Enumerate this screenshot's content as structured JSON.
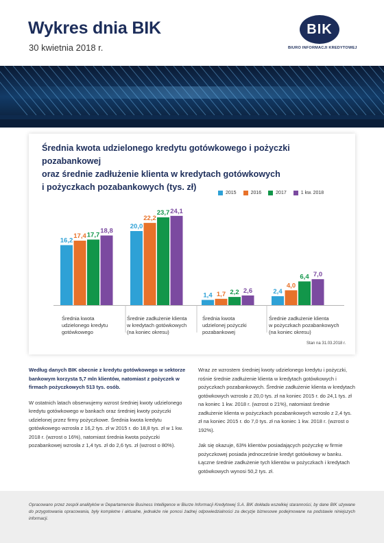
{
  "header": {
    "title": "Wykres dnia BIK",
    "date": "30 kwietnia 2018 r.",
    "logo_text": "BIK",
    "logo_subtitle": "BIURO INFORMACJI KREDYTOWEJ"
  },
  "chart": {
    "title_lines": [
      "Średnia kwota udzielonego kredytu gotówkowego i pożyczki pozabankowej",
      "oraz średnie zadłużenie klienta w kredytach gotówkowych",
      "i pożyczkach pozabankowych (tys. zł)"
    ],
    "note": "Stan na 31.03.2018 r."
  },
  "chart_data": {
    "type": "bar",
    "title": "Średnia kwota udzielonego kredytu gotówkowego i pożyczki pozabankowej oraz średnie zadłużenie klienta w kredytach gotówkowych i pożyczkach pozabankowych (tys. zł)",
    "categories": [
      [
        "Średnia kwota",
        "udzielonego kredytu",
        "gotówkowego"
      ],
      [
        "Średnie zadłużenie klienta",
        "w kredytach gotówkowych",
        "(na koniec okresu)"
      ],
      [
        "Średnia kwota",
        "udzielonej pożyczki",
        "pozabankowej"
      ],
      [
        "Średnie zadłużenie klienta",
        "w pożyczkach pozabankowych",
        "(na koniec okresu)"
      ]
    ],
    "series": [
      {
        "name": "2015",
        "color": "#2ea1d6",
        "values": [
          16.2,
          20.0,
          1.4,
          2.4
        ],
        "labels": [
          "16,2",
          "20,0",
          "1,4",
          "2,4"
        ]
      },
      {
        "name": "2016",
        "color": "#e8722a",
        "values": [
          17.4,
          22.2,
          1.7,
          4.0
        ],
        "labels": [
          "17,4",
          "22,2",
          "1,7",
          "4,0"
        ]
      },
      {
        "name": "2017",
        "color": "#12964a",
        "values": [
          17.7,
          23.7,
          2.2,
          6.4
        ],
        "labels": [
          "17,7",
          "23,7",
          "2,2",
          "6,4"
        ]
      },
      {
        "name": "1 kw. 2018",
        "color": "#7b4aa0",
        "values": [
          18.8,
          24.1,
          2.6,
          7.0
        ],
        "labels": [
          "18,8",
          "24,1",
          "2,6",
          "7,0"
        ]
      }
    ],
    "ylim": [
      0,
      25
    ],
    "grid": false,
    "legend": "top-right"
  },
  "body": {
    "left": {
      "lead": "Według danych BIK obecnie z kredytu gotówkowego w sektorze bankowym korzysta 5,7 mln klientów, natomiast z pożyczek w firmach pożyczkowych 513 tys. osób.",
      "p1": "W ostatnich latach obserwujemy wzrost średniej kwoty udzielonego kredytu gotówkowego w bankach oraz średniej kwoty pożyczki udzielonej przez firmy pożyczkowe. Średnia kwota kredytu gotówkowego wzrosła z 16,2 tys. zł w 2015 r. do 18,8 tys. zł w 1 kw. 2018 r. (wzrost o 16%), natomiast średnia kwota pożyczki pozabankowej wzrosła z 1,4 tys. zł do 2,6 tys. zł (wzrost o 80%)."
    },
    "right": {
      "p1": "Wraz ze wzrostem średniej kwoty udzielonego kredytu i pożyczki, rośnie średnie zadłużenie klienta w kredytach gotówkowych i pożyczkach pozabankowych. Średnie zadłużenie klienta w kredytach gotówkowych wzrosło z 20,0 tys. zł na koniec 2015 r. do 24,1 tys. zł na koniec 1 kw. 2018 r. (wzrost o 21%), natomiast średnie zadłużenie klienta w pożyczkach pozabankowych wzrosło z 2,4 tys. zł na koniec 2015 r. do 7,0 tys. zł na koniec 1 kw. 2018 r. (wzrost o 192%).",
      "p2": "Jak się okazuje, 63% klientów posiadających pożyczkę w firmie pożyczkowej posiada jednocześnie kredyt gotówkowy w banku. Łączne średnie zadłużenie tych klientów w pożyczkach i kredytach gotówkowych wynosi 50,2 tys. zł."
    }
  },
  "footer": {
    "text": "Opracowano przez zespół analityków w Departamencie Business Intelligence w Biurze Informacji Kredytowej S.A. BIK dokłada wszelkiej staranności, by dane BIK używane do przygotowania opracowania, były kompletne i aktualne, jednakże nie ponosi żadnej odpowiedzialności za decyzje biznesowe podejmowane na podstawie niniejszych informacji."
  }
}
